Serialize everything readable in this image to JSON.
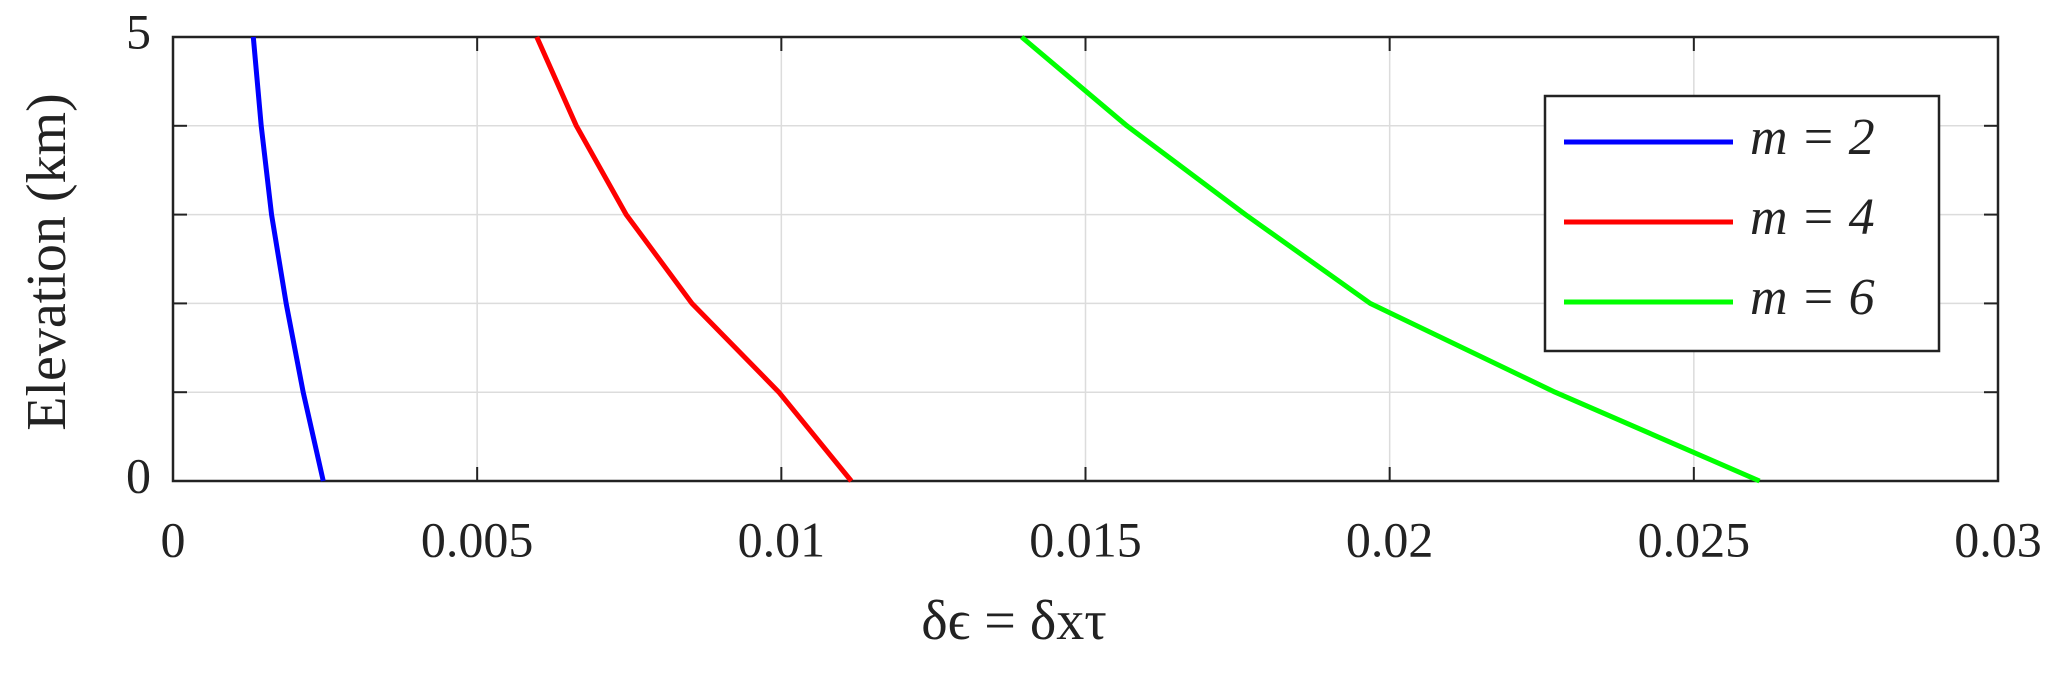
{
  "chart_data": {
    "type": "line",
    "xlabel": "δϵ = δxτ",
    "ylabel": "Elevation (km)",
    "y": [
      0,
      1,
      2,
      3,
      4,
      5
    ],
    "series": [
      {
        "name": "m = 2",
        "color": "#0000ff",
        "x": [
          0.00247,
          0.00214,
          0.00186,
          0.00162,
          0.00145,
          0.00132
        ]
      },
      {
        "name": "m = 4",
        "color": "#ff0000",
        "x": [
          0.01115,
          0.00996,
          0.00853,
          0.00745,
          0.00663,
          0.00598
        ]
      },
      {
        "name": "m = 6",
        "color": "#00ff00",
        "x": [
          0.02608,
          0.02272,
          0.01968,
          0.01763,
          0.01568,
          0.01395
        ]
      }
    ],
    "xlim": [
      0,
      0.03
    ],
    "xticks": [
      0,
      0.005,
      0.01,
      0.015,
      0.02,
      0.025,
      0.03
    ],
    "ylim": [
      0,
      5
    ],
    "yticks": [
      0,
      5
    ],
    "yminorticks": [
      1,
      2,
      3,
      4
    ],
    "grid": true,
    "legend": "upper right"
  }
}
